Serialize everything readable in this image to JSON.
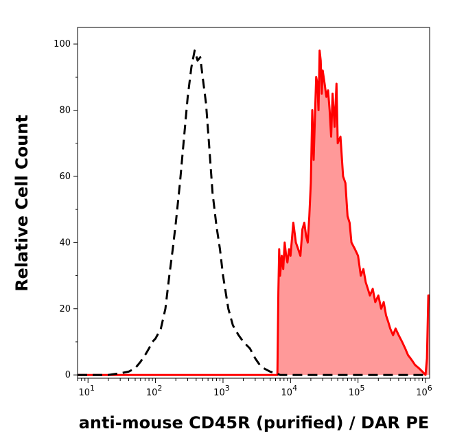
{
  "chart_data": {
    "type": "area",
    "xlabel": "anti-mouse CD45R (purified) / DAR PE",
    "ylabel": "Relative Cell Count",
    "x_scale": "log",
    "xlim": [
      7,
      1150000
    ],
    "ylim": [
      -1,
      105
    ],
    "grid": false,
    "x_ticks": [
      {
        "value": 10,
        "base": "10",
        "exp": "1"
      },
      {
        "value": 100,
        "base": "10",
        "exp": "2"
      },
      {
        "value": 1000,
        "base": "10",
        "exp": "3"
      },
      {
        "value": 10000,
        "base": "10",
        "exp": "4"
      },
      {
        "value": 100000,
        "base": "10",
        "exp": "5"
      },
      {
        "value": 1000000,
        "base": "10",
        "exp": "6"
      }
    ],
    "y_ticks": [
      {
        "value": 0,
        "label": "0"
      },
      {
        "value": 20,
        "label": "20"
      },
      {
        "value": 40,
        "label": "40"
      },
      {
        "value": 60,
        "label": "60"
      },
      {
        "value": 80,
        "label": "80"
      },
      {
        "value": 100,
        "label": "100"
      }
    ],
    "series": [
      {
        "style": "dashed",
        "color": "#000000",
        "fill": false,
        "x": [
          7,
          20,
          30,
          40,
          50,
          60,
          70,
          80,
          90,
          100,
          120,
          140,
          160,
          180,
          200,
          230,
          260,
          300,
          340,
          380,
          420,
          460,
          500,
          560,
          620,
          700,
          800,
          900,
          1000,
          1200,
          1400,
          1700,
          2000,
          2500,
          3000,
          3500,
          4000,
          5000,
          6000,
          7000,
          8000,
          10000,
          50000,
          200000,
          1000000
        ],
        "y": [
          0,
          0,
          0.5,
          1,
          2,
          4,
          6,
          8,
          10,
          11,
          14,
          20,
          30,
          38,
          46,
          58,
          70,
          84,
          93,
          98,
          95,
          96,
          90,
          82,
          70,
          55,
          45,
          38,
          30,
          20,
          15,
          12,
          10,
          8,
          5,
          3,
          2,
          1,
          0.5,
          0,
          0,
          0,
          0,
          0,
          0
        ]
      },
      {
        "style": "solid",
        "color": "#ff0000",
        "fill": true,
        "fill_color": "#ff9999",
        "x": [
          7,
          5000,
          6400,
          6600,
          6800,
          7000,
          7400,
          7800,
          8200,
          8600,
          9000,
          9500,
          10000,
          11000,
          12000,
          13000,
          14000,
          15000,
          16000,
          17000,
          18000,
          19000,
          20000,
          21000,
          22000,
          23000,
          24000,
          25000,
          26000,
          27000,
          28000,
          29000,
          30000,
          32000,
          34000,
          36000,
          38000,
          40000,
          42000,
          45000,
          48000,
          50000,
          55000,
          60000,
          65000,
          70000,
          75000,
          80000,
          90000,
          100000,
          110000,
          120000,
          130000,
          140000,
          150000,
          165000,
          180000,
          200000,
          220000,
          240000,
          260000,
          280000,
          300000,
          330000,
          360000,
          400000,
          450000,
          500000,
          550000,
          600000,
          650000,
          700000,
          800000,
          900000,
          1000000,
          1050000,
          1100000,
          1150000
        ],
        "y": [
          0,
          0,
          0,
          25,
          38,
          30,
          36,
          32,
          40,
          36,
          34,
          38,
          36,
          46,
          40,
          38,
          36,
          44,
          46,
          42,
          40,
          48,
          58,
          80,
          65,
          78,
          90,
          88,
          80,
          98,
          95,
          85,
          92,
          88,
          84,
          86,
          80,
          72,
          85,
          75,
          88,
          70,
          72,
          60,
          58,
          48,
          46,
          40,
          38,
          36,
          30,
          32,
          28,
          26,
          24,
          26,
          22,
          24,
          20,
          22,
          18,
          16,
          14,
          12,
          14,
          12,
          10,
          8,
          6,
          5,
          4,
          3,
          2,
          1,
          0,
          5,
          24,
          24
        ]
      }
    ]
  }
}
